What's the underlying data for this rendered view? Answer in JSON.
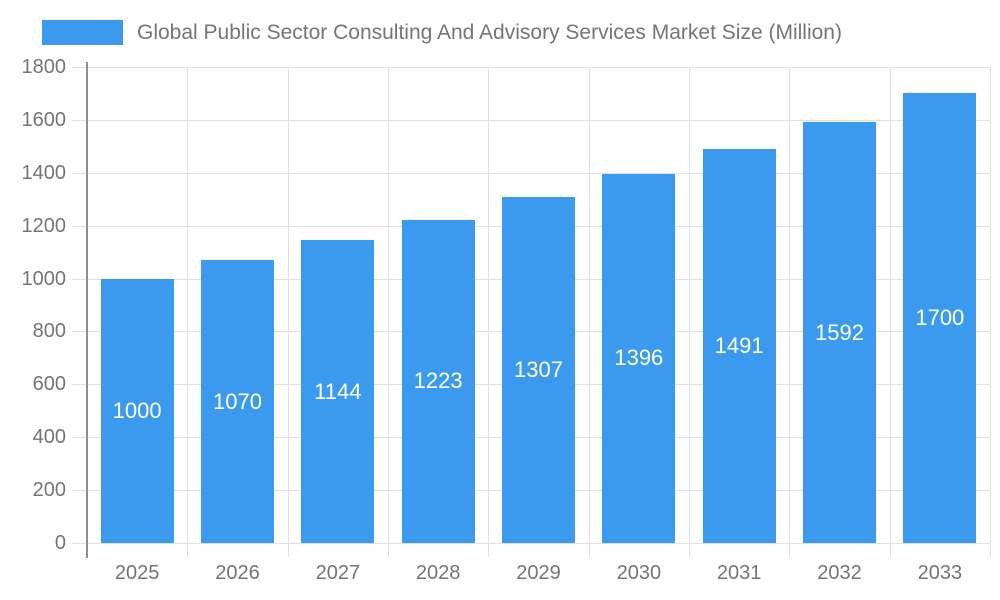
{
  "legend": {
    "label": "Global Public Sector Consulting And Advisory Services Market Size (Million)"
  },
  "chart_data": {
    "type": "bar",
    "title": "Global Public Sector Consulting And Advisory Services Market Size (Million)",
    "categories": [
      "2025",
      "2026",
      "2027",
      "2028",
      "2029",
      "2030",
      "2031",
      "2032",
      "2033"
    ],
    "values": [
      1000,
      1070,
      1144,
      1223,
      1307,
      1396,
      1491,
      1592,
      1700
    ],
    "xlabel": "",
    "ylabel": "",
    "ylim": [
      0,
      1800
    ],
    "ytick_step": 200,
    "grid": true,
    "legend_position": "top-left",
    "value_label_position": "inside-center",
    "value_label_color": "#ffffff"
  },
  "colors": {
    "bar": "#3b9aee",
    "grid": "#e0e0e0",
    "axis": "#8f8f8f",
    "text": "#757575",
    "background": "#ffffff"
  }
}
